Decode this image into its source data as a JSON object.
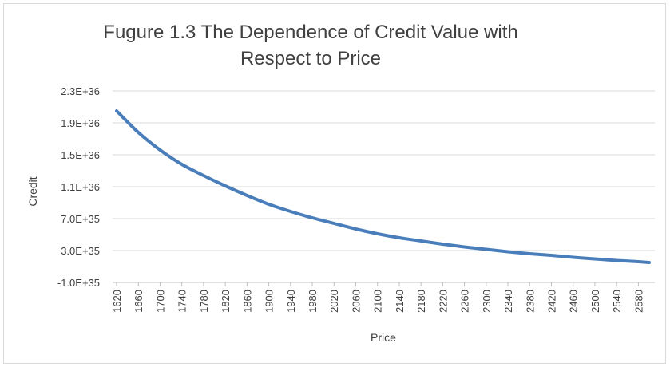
{
  "chart_data": {
    "type": "line",
    "title": "Fugure 1.3 The Dependence of Credit Value with Respect to Price",
    "title_lines": [
      "Fugure 1.3 The Dependence of Credit Value with",
      "Respect to Price"
    ],
    "xlabel": "Price",
    "ylabel": "Credit",
    "x_ticks": [
      "1620",
      "1660",
      "1700",
      "1740",
      "1780",
      "1820",
      "1860",
      "1900",
      "1940",
      "1980",
      "2020",
      "2060",
      "2100",
      "2140",
      "2180",
      "2220",
      "2260",
      "2300",
      "2340",
      "2380",
      "2420",
      "2460",
      "2500",
      "2540",
      "2580"
    ],
    "y_ticks": [
      "-1.0E+35",
      "3.0E+35",
      "7.0E+35",
      "1.1E+36",
      "1.5E+36",
      "1.9E+36",
      "2.3E+36"
    ],
    "xlim": [
      1620,
      2600
    ],
    "ylim": [
      -1e+35,
      2.3e+36
    ],
    "grid": true,
    "legend": "none",
    "line_color": "#4a7ebb",
    "series": [
      {
        "x": [
          1620,
          1660,
          1700,
          1740,
          1780,
          1820,
          1860,
          1900,
          1940,
          1980,
          2020,
          2060,
          2100,
          2140,
          2180,
          2220,
          2260,
          2300,
          2340,
          2380,
          2420,
          2460,
          2500,
          2540,
          2580,
          2600
        ],
        "values": [
          2.05e+36,
          1.78e+36,
          1.56e+36,
          1.38e+36,
          1.24e+36,
          1.11e+36,
          9.9e+35,
          8.8e+35,
          7.9e+35,
          7.1e+35,
          6.4e+35,
          5.7e+35,
          5.1e+35,
          4.6e+35,
          4.2e+35,
          3.8e+35,
          3.45e+35,
          3.15e+35,
          2.85e+35,
          2.6e+35,
          2.4e+35,
          2.15e+35,
          1.95e+35,
          1.75e+35,
          1.6e+35,
          1.5e+35
        ]
      }
    ]
  }
}
